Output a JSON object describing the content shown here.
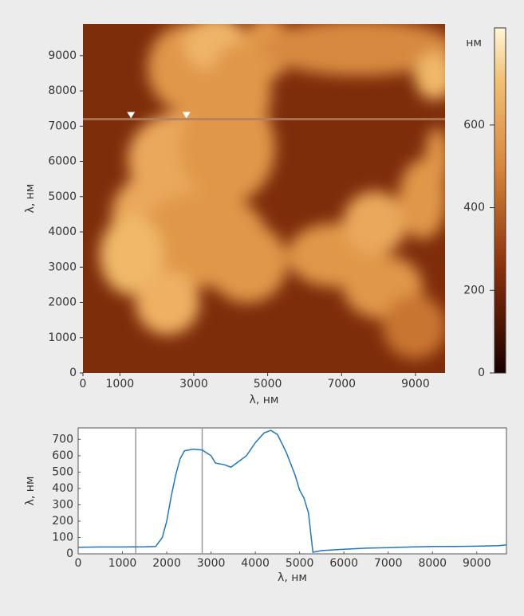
{
  "chart_data": [
    {
      "type": "image",
      "xlabel": "λ, нм",
      "ylabel": "λ, нм",
      "xlim": [
        0,
        9800
      ],
      "ylim": [
        0,
        9900
      ],
      "xticks": [
        0,
        1000,
        3000,
        5000,
        7000,
        9000
      ],
      "yticks": [
        0,
        1000,
        2000,
        3000,
        4000,
        5000,
        6000,
        7000,
        8000,
        9000
      ],
      "colorbar_label": "нм",
      "clim": [
        0,
        835
      ],
      "cticks": [
        0,
        200,
        400,
        600
      ],
      "profile_y": 7200,
      "marker_x": [
        1300,
        2800
      ]
    },
    {
      "type": "line",
      "xlabel": "λ, нм",
      "ylabel": "λ, нм",
      "xlim": [
        0,
        9670
      ],
      "ylim": [
        0,
        770
      ],
      "xticks": [
        0,
        1000,
        2000,
        3000,
        4000,
        5000,
        6000,
        7000,
        8000,
        9000
      ],
      "yticks": [
        0,
        100,
        200,
        300,
        400,
        500,
        600,
        700
      ],
      "color": "#1f77c4",
      "marker_x": [
        1300,
        2800
      ],
      "x": [
        0,
        500,
        1000,
        1500,
        1750,
        1900,
        2000,
        2100,
        2200,
        2300,
        2400,
        2600,
        2800,
        3000,
        3100,
        3300,
        3450,
        3600,
        3800,
        4000,
        4200,
        4350,
        4500,
        4700,
        4900,
        5000,
        5100,
        5200,
        5300,
        5500,
        6000,
        6500,
        7000,
        7500,
        8000,
        8500,
        9000,
        9500,
        9670
      ],
      "values": [
        40,
        42,
        42,
        43,
        45,
        100,
        200,
        350,
        480,
        580,
        630,
        640,
        635,
        600,
        555,
        545,
        530,
        560,
        600,
        680,
        740,
        755,
        730,
        620,
        480,
        390,
        340,
        250,
        10,
        20,
        28,
        35,
        38,
        42,
        45,
        45,
        47,
        50,
        55
      ]
    }
  ]
}
